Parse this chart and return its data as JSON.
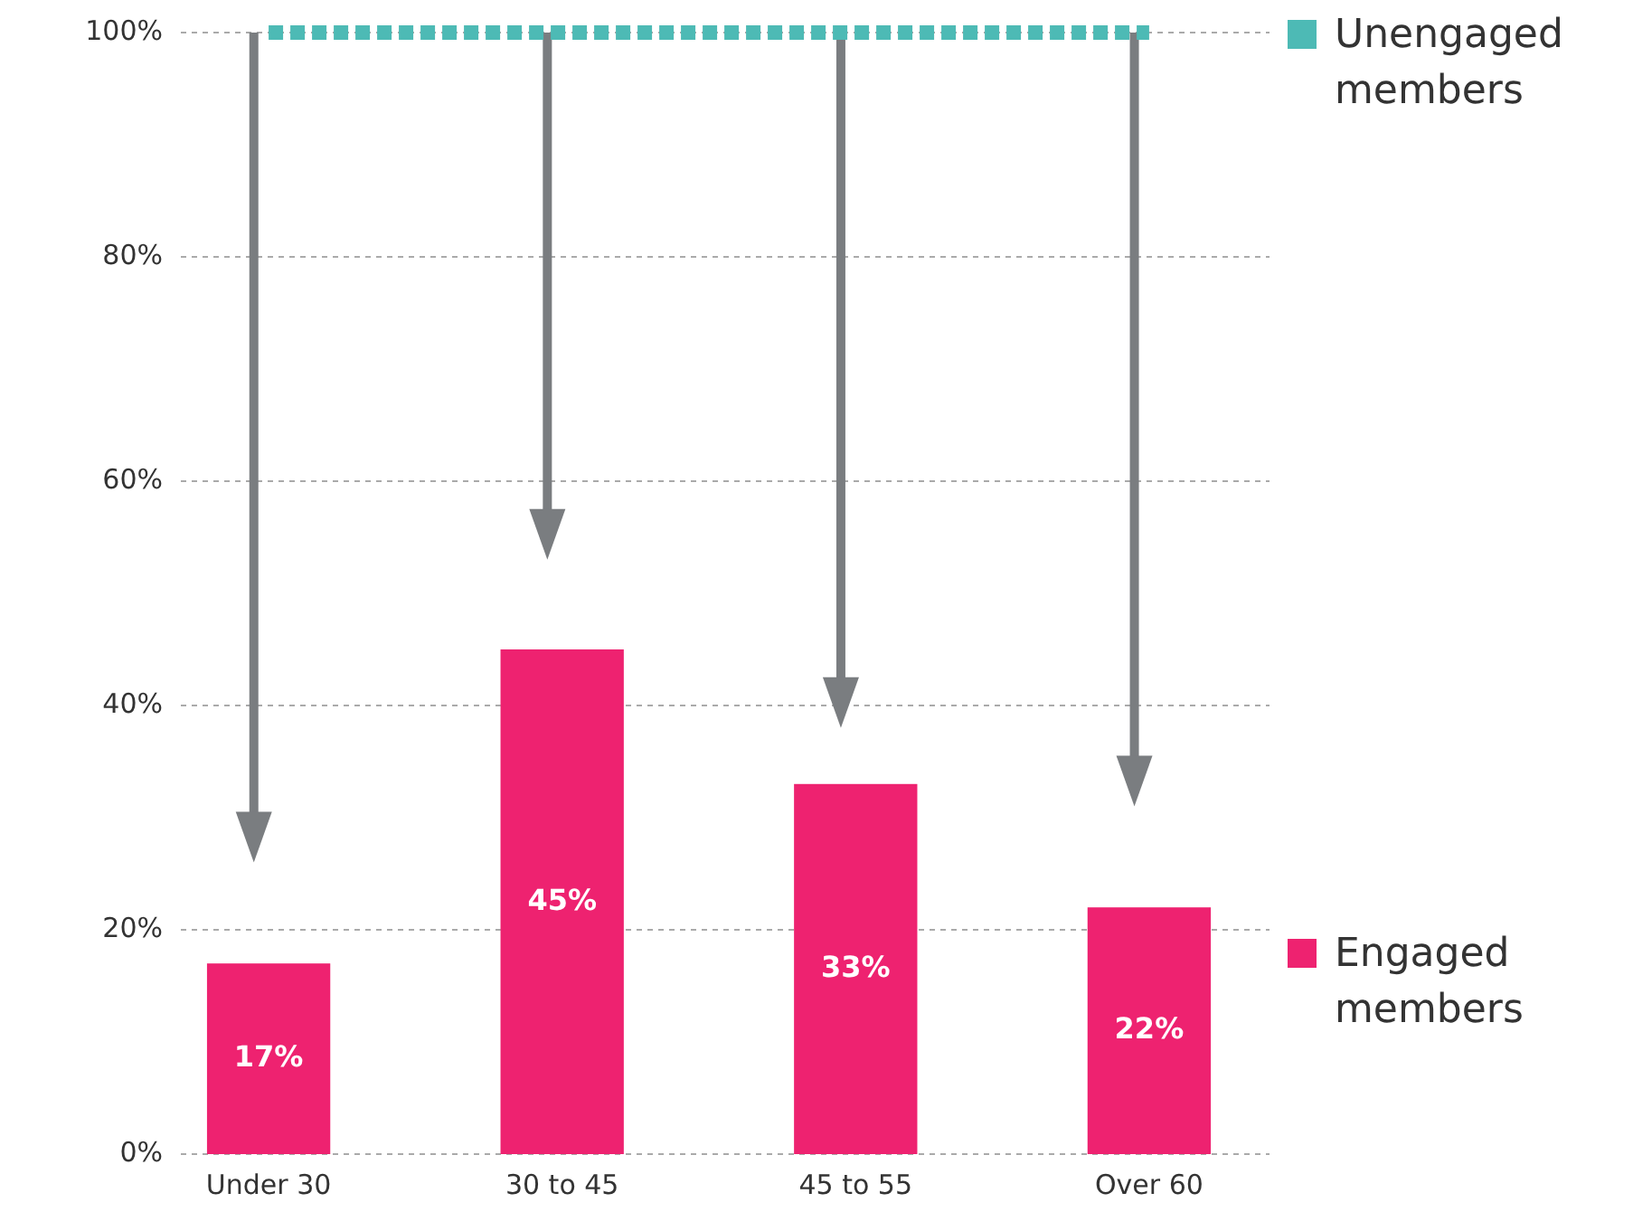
{
  "chart_data": {
    "type": "bar",
    "categories": [
      "Under 30",
      "30 to 45",
      "45 to 55",
      "Over 60"
    ],
    "series": [
      {
        "name": "Unengaged members",
        "type": "line",
        "color": "#4dbab5",
        "line_style": "dashed",
        "values": [
          100,
          100,
          100,
          100
        ]
      },
      {
        "name": "Engaged members",
        "color": "#ee2270",
        "values": [
          17,
          45,
          33,
          22
        ],
        "value_labels": [
          "17%",
          "45%",
          "33%",
          "22%"
        ]
      }
    ],
    "ylim": [
      0,
      100
    ],
    "yticks": [
      {
        "value": 0,
        "label": "0%"
      },
      {
        "value": 20,
        "label": "20%"
      },
      {
        "value": 40,
        "label": "40%"
      },
      {
        "value": 60,
        "label": "60%"
      },
      {
        "value": 80,
        "label": "80%"
      },
      {
        "value": 100,
        "label": "100%"
      }
    ],
    "grid": "y",
    "legend": "right"
  }
}
